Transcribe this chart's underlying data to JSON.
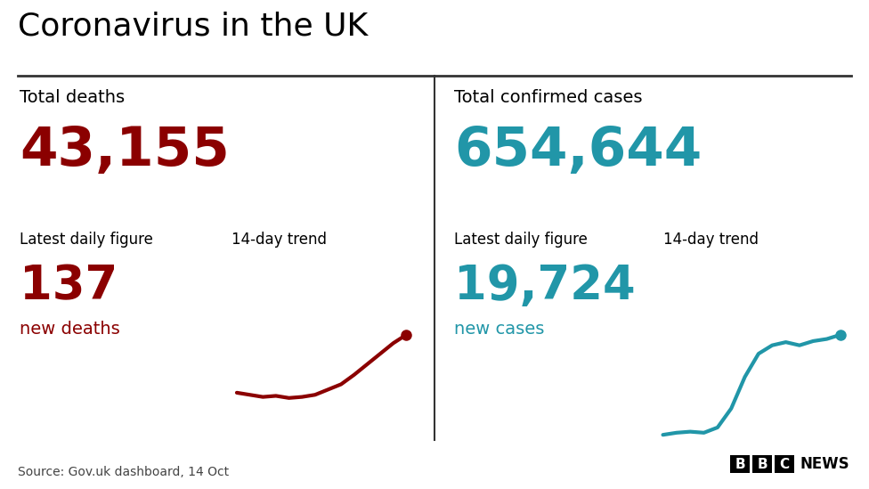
{
  "title": "Coronavirus in the UK",
  "bg_color": "#ffffff",
  "title_color": "#000000",
  "title_fontsize": 26,
  "divider_color": "#333333",
  "left_panel": {
    "label": "Total deaths",
    "total_value": "43,155",
    "total_color": "#8b0000",
    "daily_label": "Latest daily figure",
    "daily_value": "137",
    "daily_color": "#8b0000",
    "daily_sub": "new deaths",
    "trend_label": "14-day trend",
    "trend_x": [
      0,
      1,
      2,
      3,
      4,
      5,
      6,
      7,
      8,
      9,
      10,
      11,
      12,
      13
    ],
    "trend_y": [
      0.45,
      0.43,
      0.41,
      0.42,
      0.4,
      0.41,
      0.43,
      0.48,
      0.53,
      0.62,
      0.72,
      0.82,
      0.92,
      1.0
    ],
    "trend_color": "#8b0000"
  },
  "right_panel": {
    "label": "Total confirmed cases",
    "total_value": "654,644",
    "total_color": "#2196a8",
    "daily_label": "Latest daily figure",
    "daily_value": "19,724",
    "daily_color": "#2196a8",
    "daily_sub": "new cases",
    "trend_label": "14-day trend",
    "trend_x": [
      0,
      1,
      2,
      3,
      4,
      5,
      6,
      7,
      8,
      9,
      10,
      11,
      12,
      13
    ],
    "trend_y": [
      0.05,
      0.07,
      0.08,
      0.07,
      0.12,
      0.3,
      0.6,
      0.82,
      0.9,
      0.93,
      0.9,
      0.94,
      0.96,
      1.0
    ],
    "trend_color": "#2196a8"
  },
  "source_text": "Source: Gov.uk dashboard, 14 Oct",
  "source_color": "#444444",
  "bbc_text": "BBC",
  "bbc_news_text": "NEWS",
  "panel_label_fontsize": 14,
  "total_fontsize": 44,
  "daily_value_fontsize": 38,
  "daily_sub_fontsize": 14,
  "trend_label_fontsize": 12,
  "source_fontsize": 10,
  "bbc_fontsize": 14
}
